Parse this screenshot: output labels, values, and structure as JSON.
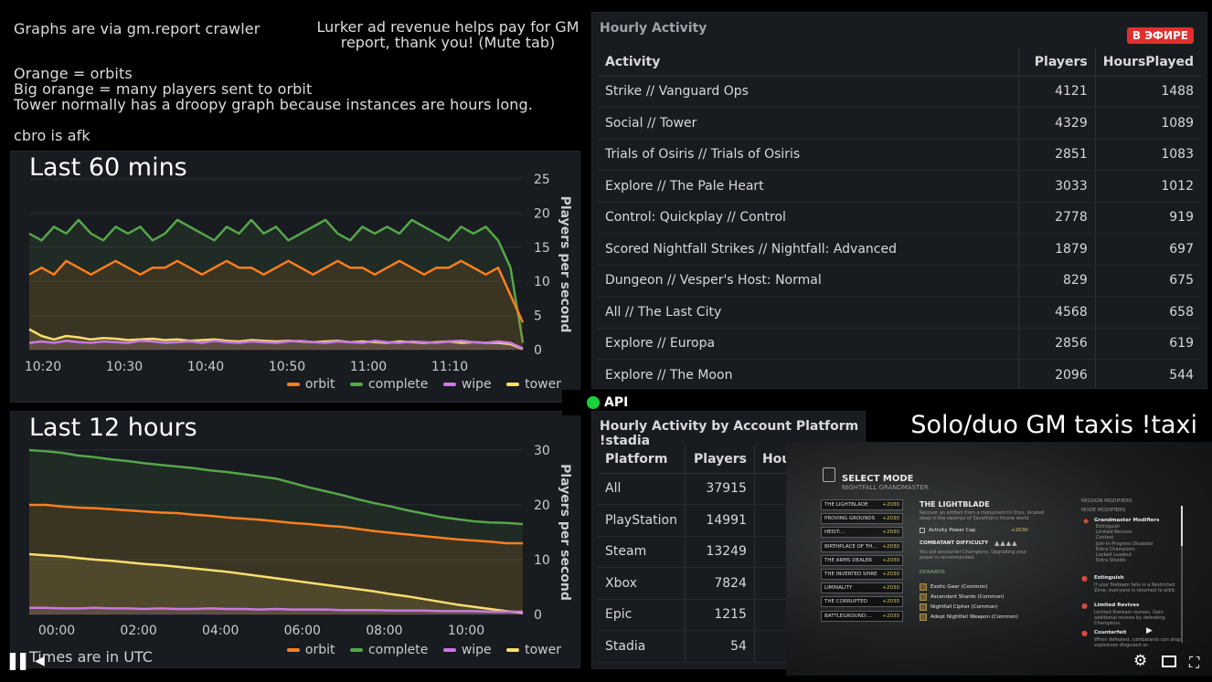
{
  "header": {
    "crawler_note": "Graphs are via gm.report crawler",
    "ad_note": "Lurker ad revenue helps pay for GM report, thank you! (Mute tab)",
    "legend_lines": [
      "Orange = orbits",
      "Big orange = many players sent to orbit",
      "Tower normally has a droopy graph because instances are hours long."
    ],
    "afk_note": "cbro is afk"
  },
  "colors": {
    "orbit": "#ff7f1f",
    "complete": "#56a64b",
    "wipe": "#c879e3",
    "tower": "#fade6f",
    "live": "#e02f2f",
    "api_dot": "#19d13a"
  },
  "chart_60": {
    "overlay_title": "Last 60 mins",
    "chart_data": {
      "type": "line",
      "title": "",
      "ylabel": "Players per second",
      "ylim": [
        0,
        25
      ],
      "y_ticks": [
        "0",
        "5",
        "10",
        "15",
        "20",
        "25"
      ],
      "x_ticks": [
        "10:20",
        "10:30",
        "10:40",
        "10:50",
        "11:00",
        "11:10"
      ],
      "series": [
        {
          "name": "orbit",
          "values": [
            11,
            12,
            11,
            13,
            12,
            11,
            12,
            13,
            12,
            11,
            12,
            12,
            13,
            12,
            11,
            12,
            13,
            12,
            12,
            11,
            12,
            13,
            12,
            11,
            12,
            13,
            12,
            12,
            11,
            12,
            13,
            12,
            11,
            12,
            12,
            13,
            12,
            11,
            12,
            8,
            4
          ]
        },
        {
          "name": "complete",
          "values": [
            17,
            16,
            18,
            17,
            19,
            17,
            16,
            18,
            17,
            18,
            16,
            17,
            19,
            18,
            17,
            16,
            18,
            17,
            19,
            17,
            18,
            16,
            17,
            18,
            19,
            17,
            16,
            18,
            17,
            18,
            17,
            19,
            18,
            17,
            16,
            18,
            17,
            18,
            16,
            12,
            1
          ]
        },
        {
          "name": "wipe",
          "values": [
            1,
            1.2,
            1,
            1.3,
            1.1,
            1,
            1.2,
            1.1,
            1,
            1.3,
            1.2,
            1,
            1.1,
            1.2,
            1,
            1.3,
            1.1,
            1,
            1.2,
            1.1,
            1,
            1.2,
            1.3,
            1.1,
            1,
            1.2,
            1.1,
            1,
            1.3,
            1.1,
            1,
            1.2,
            1.1,
            1,
            1.2,
            1.3,
            1.1,
            1,
            1.2,
            1,
            0.2
          ]
        },
        {
          "name": "tower",
          "values": [
            3,
            2,
            1.5,
            2,
            1.8,
            1.5,
            1.7,
            1.6,
            1.4,
            1.5,
            1.6,
            1.4,
            1.5,
            1.3,
            1.4,
            1.5,
            1.3,
            1.2,
            1.4,
            1.3,
            1.2,
            1.3,
            1.2,
            1.1,
            1.2,
            1.3,
            1.1,
            1.2,
            1.1,
            1,
            1.2,
            1.1,
            1,
            1.1,
            1.2,
            1,
            1.1,
            1,
            1,
            0.8,
            0.1
          ]
        }
      ]
    }
  },
  "chart_12h": {
    "overlay_title": "Last 12 hours",
    "footer_note": "Times are in UTC",
    "chart_data": {
      "type": "line",
      "title": "",
      "ylabel": "Players per second",
      "ylim": [
        0,
        30
      ],
      "y_ticks": [
        "0",
        "10",
        "20",
        "30"
      ],
      "x_ticks": [
        "00:00",
        "02:00",
        "04:00",
        "06:00",
        "08:00",
        "10:00"
      ],
      "series": [
        {
          "name": "orbit",
          "values": [
            20,
            20,
            19.7,
            19.5,
            19.4,
            19.2,
            19,
            18.8,
            18.6,
            18.5,
            18.2,
            18,
            17.7,
            17.5,
            17.3,
            17,
            16.7,
            16.5,
            16.2,
            16,
            15.6,
            15.2,
            14.9,
            14.6,
            14.3,
            14,
            13.7,
            13.5,
            13.3,
            13,
            13
          ]
        },
        {
          "name": "complete",
          "values": [
            30,
            29.8,
            29.5,
            29,
            28.7,
            28.3,
            28,
            27.6,
            27.3,
            27,
            26.7,
            26.3,
            26,
            25.6,
            25.2,
            24.8,
            24,
            23.2,
            22.5,
            21.8,
            21,
            20.3,
            19.7,
            19,
            18.4,
            17.8,
            17.4,
            17,
            16.8,
            16.7,
            16.5
          ]
        },
        {
          "name": "wipe",
          "values": [
            1.2,
            1.2,
            1.1,
            1.1,
            1.2,
            1.1,
            1.1,
            1,
            1.1,
            1,
            1,
            1.1,
            1,
            1,
            0.9,
            1,
            0.9,
            0.9,
            0.9,
            0.8,
            0.8,
            0.8,
            0.7,
            0.7,
            0.7,
            0.6,
            0.6,
            0.6,
            0.5,
            0.5,
            0.5
          ]
        },
        {
          "name": "tower",
          "values": [
            11,
            10.8,
            10.6,
            10.3,
            10,
            9.8,
            9.5,
            9.2,
            9,
            8.7,
            8.4,
            8.1,
            7.8,
            7.4,
            7,
            6.6,
            6.2,
            5.8,
            5.4,
            5,
            4.6,
            4.2,
            3.7,
            3.3,
            2.8,
            2.3,
            1.8,
            1.4,
            1,
            0.6,
            0.3
          ]
        }
      ]
    }
  },
  "hourly_activity": {
    "title": "Hourly Activity",
    "live_badge": "В ЭФИРЕ",
    "columns": [
      "Activity",
      "Players",
      "HoursPlayed"
    ],
    "rows": [
      [
        "Strike // Vanguard Ops",
        "4121",
        "1488"
      ],
      [
        "Social // Tower",
        "4329",
        "1089"
      ],
      [
        "Trials of Osiris // Trials of Osiris",
        "2851",
        "1083"
      ],
      [
        "Explore // The Pale Heart",
        "3033",
        "1012"
      ],
      [
        "Control: Quickplay // Control",
        "2778",
        "919"
      ],
      [
        "Scored Nightfall Strikes // Nightfall: Advanced",
        "1879",
        "697"
      ],
      [
        "Dungeon // Vesper's Host: Normal",
        "829",
        "675"
      ],
      [
        "All // The Last City",
        "4568",
        "658"
      ],
      [
        "Explore // Europa",
        "2856",
        "619"
      ],
      [
        "Explore // The Moon",
        "2096",
        "544"
      ]
    ]
  },
  "api_status": {
    "label": "API"
  },
  "platform_activity": {
    "title": "Hourly Activity by Account Platform !stadia",
    "columns": [
      "Platform",
      "Players",
      "Hou"
    ],
    "rows": [
      [
        "All",
        "37915"
      ],
      [
        "PlayStation",
        "14991"
      ],
      [
        "Steam",
        "13249"
      ],
      [
        "Xbox",
        "7824"
      ],
      [
        "Epic",
        "1215"
      ],
      [
        "Stadia",
        "54"
      ]
    ]
  },
  "taxi": {
    "title": "Solo/duo GM taxis !taxi"
  },
  "game": {
    "select_mode": "SELECT MODE",
    "subtitle": "NIGHTFALL GRANDMASTER",
    "power": "+2030",
    "list": [
      "THE LIGHTBLADE",
      "PROVING GROUNDS",
      "HEIST:...",
      "BIRTHPLACE OF TH...",
      "THE ARMS DEALER",
      "THE INVERTED SPIRE",
      "LIMINALITY",
      "THE CORRUPTED",
      "BATTLEGROUND:..."
    ],
    "detail_title": "THE LIGHTBLADE",
    "detail_desc": "Recover an artifact from a monument to Oryx, located deep in the swamps of Savathûn's throne world.",
    "power_cap": "Activity Power Cap",
    "power_cap_value": "+2030",
    "difficulty": "COMBATANT DIFFICULTY",
    "champions": "You will encounter Champions. Upgrading your power is recommended.",
    "rewards_label": "REWARDS",
    "rewards": [
      "Exotic Gear (Common)",
      "Ascendant Shards (Common)",
      "Nightfall Cipher (Common)",
      "Adept Nightfall Weapon (Common)"
    ],
    "mission_modifiers": "MISSION MODIFIERS",
    "node_modifiers": "NODE MODIFIERS",
    "gm_modifiers": "Grandmaster Modifiers",
    "gm_list": [
      "Extinguish",
      "Limited Revives",
      "Contest",
      "Join-In-Progress Disabled",
      "Extra Champions",
      "Locked Loadout",
      "Extra Shields"
    ],
    "mods": [
      {
        "name": "Extinguish",
        "desc": "If your fireteam falls in a Restricted Zone, everyone is returned to orbit."
      },
      {
        "name": "Limited Revives",
        "desc": "Limited fireteam revives. Gain additional revives by defeating Champions."
      },
      {
        "name": "Counterfeit",
        "desc": "When defeated, combatants can drop explosives disguised as"
      }
    ]
  }
}
